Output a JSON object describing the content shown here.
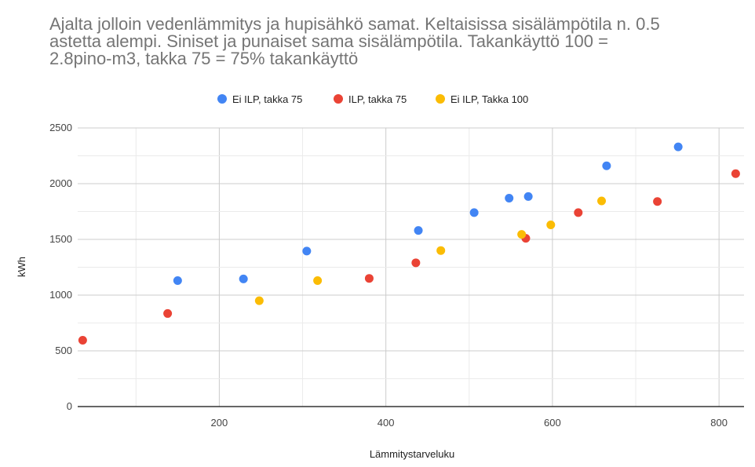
{
  "chart_data": {
    "type": "scatter",
    "title_lines": [
      "Ajalta jolloin vedenlämmitys ja hupisähkö samat. Keltaisissa sisälämpötila n. 0.5",
      "astetta alempi. Siniset ja punaiset sama sisälämpötila. Takankäyttö 100 =",
      "2.8pino-m3, takka 75 = 75% takankäyttö"
    ],
    "xlabel": "Lämmitystarveluku",
    "ylabel": "kWh",
    "xlim": [
      30,
      830
    ],
    "ylim": [
      0,
      2500
    ],
    "x_ticks": [
      "200",
      "400",
      "600",
      "800"
    ],
    "y_ticks": [
      "0",
      "500",
      "1000",
      "1500",
      "2000",
      "2500"
    ],
    "legend_position": "top-center",
    "series": [
      {
        "name": "Ei ILP, takka 75",
        "color": "#4285f4",
        "points": [
          [
            150,
            1130
          ],
          [
            229,
            1145
          ],
          [
            305,
            1395
          ],
          [
            439,
            1580
          ],
          [
            506,
            1740
          ],
          [
            548,
            1870
          ],
          [
            571,
            1885
          ],
          [
            665,
            2160
          ],
          [
            751,
            2330
          ]
        ]
      },
      {
        "name": "ILP, takka 75",
        "color": "#ea4335",
        "points": [
          [
            36,
            595
          ],
          [
            138,
            835
          ],
          [
            380,
            1150
          ],
          [
            436,
            1290
          ],
          [
            568,
            1510
          ],
          [
            631,
            1740
          ],
          [
            726,
            1840
          ],
          [
            820,
            2090
          ]
        ]
      },
      {
        "name": "Ei ILP, Takka 100",
        "color": "#fbbc04",
        "points": [
          [
            248,
            950
          ],
          [
            318,
            1130
          ],
          [
            466,
            1400
          ],
          [
            563,
            1545
          ],
          [
            598,
            1630
          ],
          [
            659,
            1845
          ]
        ]
      }
    ]
  }
}
